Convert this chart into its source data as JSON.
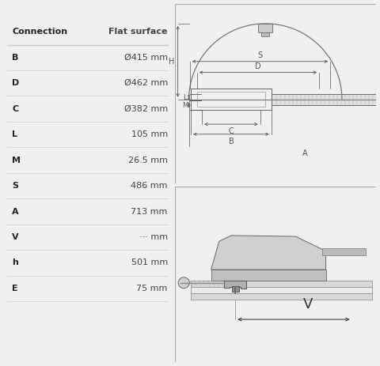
{
  "background_color": "#f0f0f0",
  "panel_bg": "#ffffff",
  "table_rows": [
    {
      "label": "Connection",
      "value": "Flat surface",
      "is_header": true
    },
    {
      "label": "B",
      "value": "Ø415 mm",
      "is_header": false
    },
    {
      "label": "D",
      "value": "Ø462 mm",
      "is_header": false
    },
    {
      "label": "C",
      "value": "Ø382 mm",
      "is_header": false
    },
    {
      "label": "L",
      "value": "105 mm",
      "is_header": false
    },
    {
      "label": "M",
      "value": "26.5 mm",
      "is_header": false
    },
    {
      "label": "S",
      "value": "486 mm",
      "is_header": false
    },
    {
      "label": "A",
      "value": "713 mm",
      "is_header": false
    },
    {
      "label": "V",
      "value": "··· mm",
      "is_header": false
    },
    {
      "label": "h",
      "value": "501 mm",
      "is_header": false
    },
    {
      "label": "E",
      "value": "75 mm",
      "is_header": false
    }
  ],
  "divider_color": "#cccccc",
  "label_color": "#222222",
  "value_color": "#444444",
  "dim_color": "#555555"
}
